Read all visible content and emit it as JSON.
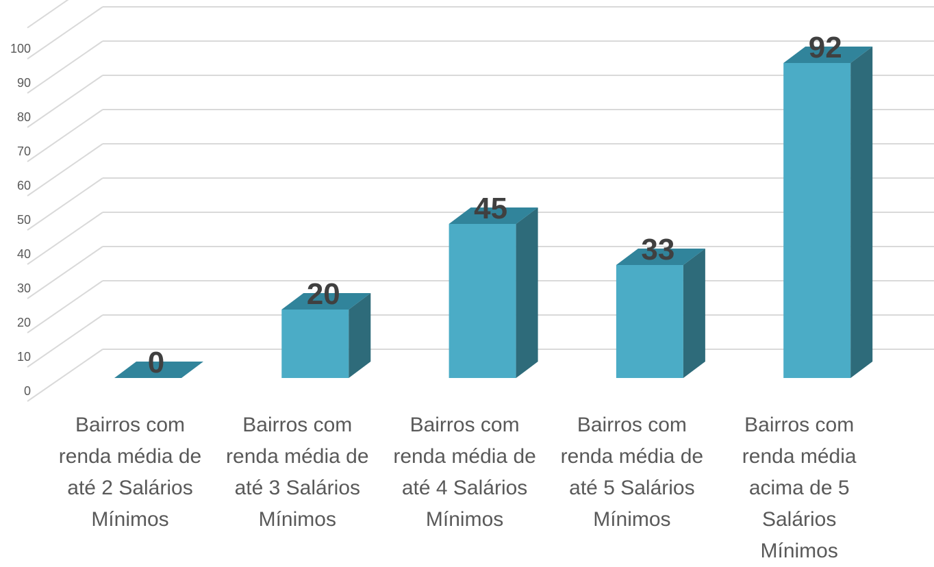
{
  "chart_data": {
    "type": "bar3d",
    "categories": [
      "Bairros com renda média de até 2 Salários Mínimos",
      "Bairros com renda média de até 3 Salários Mínimos",
      "Bairros com renda média de até 4 Salários Mínimos",
      "Bairros com renda média de até 5 Salários Mínimos",
      "Bairros com renda média acima de 5 Salários Mínimos"
    ],
    "values": [
      0,
      20,
      45,
      33,
      92
    ],
    "color": "#4bacc6",
    "ylim": [
      0,
      100
    ],
    "yticks": [
      0,
      10,
      20,
      30,
      40,
      50,
      60,
      70,
      80,
      90,
      100
    ],
    "grid": true
  }
}
